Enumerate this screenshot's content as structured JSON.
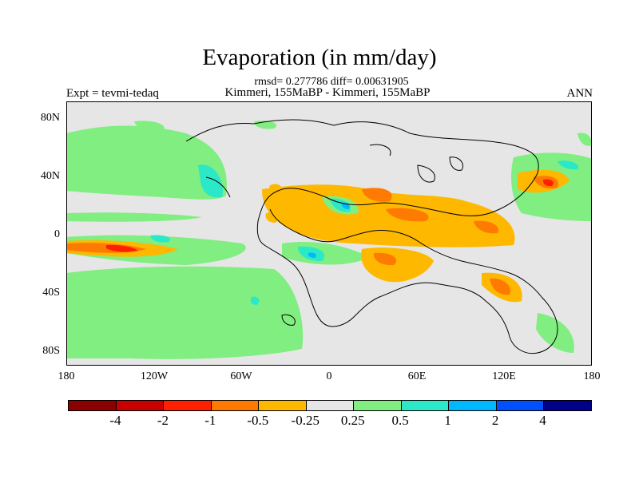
{
  "title": "Evaporation (in mm/day)",
  "stats": "rmsd= 0.277786 diff= 0.00631905",
  "subtitle": "Kimmeri, 155MaBP - Kimmeri, 155MaBP",
  "expt_label": "Expt = tevmi-tedaq",
  "season": "ANN",
  "map": {
    "background": "#e6e6e6",
    "lat_labels": [
      "80N",
      "40N",
      "0",
      "40S",
      "80S"
    ],
    "lon_labels": [
      "180",
      "120W",
      "60W",
      "0",
      "60E",
      "120E",
      "180"
    ]
  },
  "colorbar": {
    "colors": [
      "#8b0000",
      "#c80000",
      "#ff2000",
      "#ff7a00",
      "#ffb800",
      "#e6e6e6",
      "#80ee80",
      "#2ae8c8",
      "#00b8ff",
      "#0050ff",
      "#00008b"
    ],
    "labels": [
      "-4",
      "-2",
      "-1",
      "-0.5",
      "-0.25",
      "0.25",
      "0.5",
      "1",
      "2",
      "4"
    ]
  }
}
